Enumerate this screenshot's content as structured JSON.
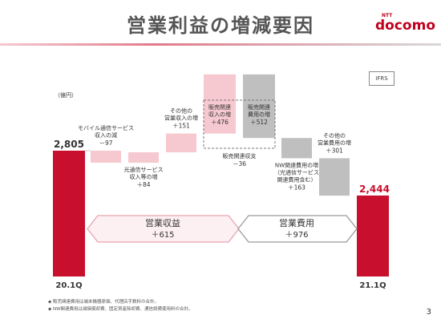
{
  "title": "営業利益の増減要因",
  "logo": {
    "small": "NTT",
    "brand": "docomo"
  },
  "badge": "IFRS",
  "unit": "（億円）",
  "colors": {
    "red": "#c8102e",
    "pink": "#f6c8cf",
    "gray": "#bfbfbf",
    "banner_revenue_fill": "#fdf0f2",
    "banner_revenue_border": "#e7a3ae",
    "banner_expense_fill": "#ffffff",
    "banner_expense_border": "#9a9a9a"
  },
  "chart_data": {
    "type": "bar",
    "subtype": "waterfall",
    "steps": [
      {
        "label_lines": [
          "20.1Q"
        ],
        "value": 2805,
        "value_label": "2,805",
        "kind": "total"
      },
      {
        "label_lines": [
          "モバイル通信サービス",
          "収入の減"
        ],
        "delta_label": "－97",
        "value": -97,
        "kind": "revenue"
      },
      {
        "label_lines": [
          "光通信サービス",
          "収入等の増"
        ],
        "delta_label": "＋84",
        "value": 84,
        "kind": "revenue"
      },
      {
        "label_lines": [
          "その他の",
          "営業収入の増"
        ],
        "delta_label": "＋151",
        "value": 151,
        "kind": "revenue"
      },
      {
        "label_lines": [
          "販売関連",
          "収入の増"
        ],
        "delta_label": "＋476",
        "value": 476,
        "kind": "revenue"
      },
      {
        "label_lines": [
          "販売関連",
          "費用の増"
        ],
        "delta_label": "＋512",
        "value": -512,
        "kind": "expense"
      },
      {
        "label_lines": [
          "販売関連収支"
        ],
        "delta_label": "－36",
        "value": -36,
        "kind": "bracket"
      },
      {
        "label_lines": [
          "NW関連費用の増",
          "（光通信サービス",
          "関連費用含む）"
        ],
        "delta_label": "＋163",
        "value": -163,
        "kind": "expense"
      },
      {
        "label_lines": [
          "その他の",
          "営業費用の増"
        ],
        "delta_label": "＋301",
        "value": -301,
        "kind": "expense"
      },
      {
        "label_lines": [
          "21.1Q"
        ],
        "value": 2444,
        "value_label": "2,444",
        "kind": "total"
      }
    ],
    "groups": [
      {
        "label": "営業収益",
        "value_label": "＋615",
        "value": 615
      },
      {
        "label": "営業費用",
        "value_label": "＋976",
        "value": 976
      }
    ]
  },
  "footnotes": [
    "◆ 販売関連費用は端末機器原価、代理店手数料の合計。",
    "◆ NW関連費用は減価償却費、固定資産除却費、通信設備使用料の合計。"
  ],
  "page_number": "3"
}
